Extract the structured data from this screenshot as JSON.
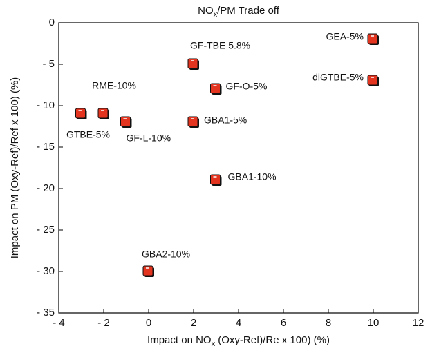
{
  "chart_data": {
    "type": "scatter",
    "title": {
      "main": "NO",
      "sub": "x",
      "rest": "/PM Trade off"
    },
    "x_label": {
      "main": "Impact on NO",
      "sub": "x",
      "rest": " (Oxy-Ref)/Re x 100) (%)"
    },
    "y_label": "Impact on PM (Oxy-Ref)/Ref x 100) (%)",
    "series": [
      {
        "color": "#e3341f",
        "labels": [
          "GEA-5%",
          "diGTBE-5%",
          "GF-TBE 5.8%",
          "GF-O-5%",
          "GBA1-5%",
          "GBA1-10%",
          "GBA2-10%",
          "GTBE-5%",
          "RME-10%",
          "GF-L-10%"
        ],
        "x": [
          10,
          10,
          2,
          3,
          2,
          3,
          0,
          -3,
          -2,
          -1
        ],
        "values": [
          -2,
          -7,
          -5,
          -8,
          -12,
          -19,
          -30,
          -11,
          -11,
          -12
        ]
      }
    ],
    "xlim": [
      -4,
      12
    ],
    "xticks": [
      {
        "value": -4,
        "label": "- 4"
      },
      {
        "value": -2,
        "label": "- 2"
      },
      0,
      2,
      4,
      6,
      8,
      10,
      12
    ],
    "ylim": [
      -35,
      0
    ],
    "yticks": [
      0,
      {
        "value": -5,
        "label": "- 5"
      },
      {
        "value": -10,
        "label": "- 10"
      },
      {
        "value": -15,
        "label": "- 15"
      },
      {
        "value": -20,
        "label": "- 20"
      },
      {
        "value": -25,
        "label": "- 25"
      },
      {
        "value": -30,
        "label": "- 30"
      },
      {
        "value": -35,
        "label": "- 35"
      }
    ],
    "grid": false
  }
}
